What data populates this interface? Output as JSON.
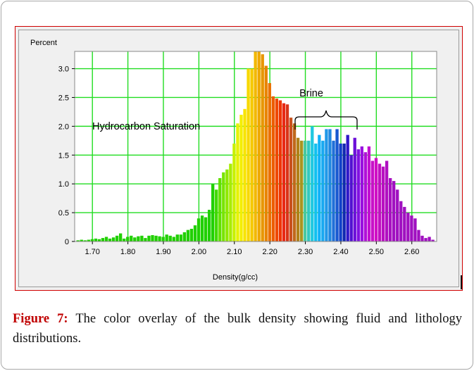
{
  "figure": {
    "caption_label": "Figure 7:",
    "caption_text": " The color overlay of the bulk density showing fluid and lithology distributions."
  },
  "chart_data": {
    "type": "bar",
    "title": "",
    "ylabel": "Percent",
    "xlabel": "Density(g/cc)",
    "xlim": [
      1.65,
      2.67
    ],
    "ylim": [
      0,
      3.3
    ],
    "xticks": [
      "1.70",
      "1.80",
      "1.90",
      "2.00",
      "2.10",
      "2.20",
      "2.30",
      "2.40",
      "2.50",
      "2.60"
    ],
    "yticks": [
      "0",
      "0.5",
      "1.0",
      "1.5",
      "2.0",
      "2.5",
      "3.0"
    ],
    "grid": true,
    "bin_width": 0.01,
    "x": [
      1.66,
      1.67,
      1.68,
      1.69,
      1.7,
      1.71,
      1.72,
      1.73,
      1.74,
      1.75,
      1.76,
      1.77,
      1.78,
      1.79,
      1.8,
      1.81,
      1.82,
      1.83,
      1.84,
      1.85,
      1.86,
      1.87,
      1.88,
      1.89,
      1.9,
      1.91,
      1.92,
      1.93,
      1.94,
      1.95,
      1.96,
      1.97,
      1.98,
      1.99,
      2.0,
      2.01,
      2.02,
      2.03,
      2.04,
      2.05,
      2.06,
      2.07,
      2.08,
      2.09,
      2.1,
      2.11,
      2.12,
      2.13,
      2.14,
      2.15,
      2.16,
      2.17,
      2.18,
      2.19,
      2.2,
      2.21,
      2.22,
      2.23,
      2.24,
      2.25,
      2.26,
      2.27,
      2.28,
      2.29,
      2.3,
      2.31,
      2.32,
      2.33,
      2.34,
      2.35,
      2.36,
      2.37,
      2.38,
      2.39,
      2.4,
      2.41,
      2.42,
      2.43,
      2.44,
      2.45,
      2.46,
      2.47,
      2.48,
      2.49,
      2.5,
      2.51,
      2.52,
      2.53,
      2.54,
      2.55,
      2.56,
      2.57,
      2.58,
      2.59,
      2.6,
      2.61,
      2.62,
      2.63,
      2.64,
      2.65,
      2.66
    ],
    "values": [
      0.02,
      0.03,
      0.02,
      0.03,
      0.04,
      0.05,
      0.04,
      0.06,
      0.08,
      0.05,
      0.07,
      0.1,
      0.14,
      0.05,
      0.08,
      0.1,
      0.07,
      0.09,
      0.1,
      0.06,
      0.1,
      0.11,
      0.1,
      0.09,
      0.08,
      0.12,
      0.1,
      0.08,
      0.12,
      0.12,
      0.16,
      0.2,
      0.22,
      0.28,
      0.4,
      0.45,
      0.42,
      0.55,
      1.0,
      0.9,
      1.1,
      1.2,
      1.25,
      1.35,
      1.7,
      2.05,
      2.2,
      2.3,
      3.0,
      3.0,
      3.35,
      3.3,
      3.25,
      3.05,
      2.75,
      2.52,
      2.48,
      2.45,
      2.4,
      2.38,
      2.15,
      2.05,
      1.8,
      1.75,
      1.75,
      1.75,
      2.0,
      1.7,
      1.85,
      1.75,
      1.95,
      1.95,
      1.75,
      1.95,
      1.7,
      1.7,
      1.85,
      1.5,
      1.8,
      1.6,
      1.65,
      1.55,
      1.65,
      1.4,
      1.45,
      1.35,
      1.3,
      1.4,
      1.1,
      1.05,
      0.9,
      0.7,
      0.6,
      0.5,
      0.45,
      0.4,
      0.2,
      0.1,
      0.06,
      0.08,
      0.03
    ],
    "colors": [
      "#20d000",
      "#20d000",
      "#20d000",
      "#20d000",
      "#20d000",
      "#20d000",
      "#20d000",
      "#20d000",
      "#20d000",
      "#20d000",
      "#20d000",
      "#20d000",
      "#20d000",
      "#20d000",
      "#20d000",
      "#20d000",
      "#20d000",
      "#20d000",
      "#20d000",
      "#20d000",
      "#20d000",
      "#20d000",
      "#20d000",
      "#20d000",
      "#20d000",
      "#20d000",
      "#20d000",
      "#20d000",
      "#20d000",
      "#20d000",
      "#20d000",
      "#20d000",
      "#20d000",
      "#20d000",
      "#20d000",
      "#20d000",
      "#20d000",
      "#20d000",
      "#20d000",
      "#40d800",
      "#60e000",
      "#78e400",
      "#90e800",
      "#a8ec00",
      "#c8f000",
      "#e6f200",
      "#f4ee00",
      "#f8e400",
      "#f8d800",
      "#f6c800",
      "#f2b800",
      "#eea800",
      "#e89600",
      "#e88400",
      "#ea7000",
      "#ec5c00",
      "#ee4800",
      "#ee3400",
      "#e82814",
      "#d83418",
      "#c8501c",
      "#c0681a",
      "#b08018",
      "#a89420",
      "#48c8a0",
      "#30c8c0",
      "#20c8e0",
      "#10c0f0",
      "#10b0f8",
      "#18a8f0",
      "#2098e8",
      "#2088e0",
      "#2070d8",
      "#1858d0",
      "#1040c8",
      "#1028b0",
      "#3018c8",
      "#5010d0",
      "#6c10d8",
      "#8010e0",
      "#9810e0",
      "#b010d8",
      "#c010d0",
      "#c810c8",
      "#d010c4",
      "#c010c0",
      "#b810c0",
      "#b010c0",
      "#a810c0",
      "#a010c0",
      "#a010c0",
      "#a010c0",
      "#a010c0",
      "#a010c0",
      "#a010c0",
      "#a010c0",
      "#a010c0",
      "#a010c0",
      "#a010c0",
      "#a010c0",
      "#a010c0"
    ],
    "annotations": [
      "Hydrocarbon  Saturation",
      "Brine"
    ]
  }
}
